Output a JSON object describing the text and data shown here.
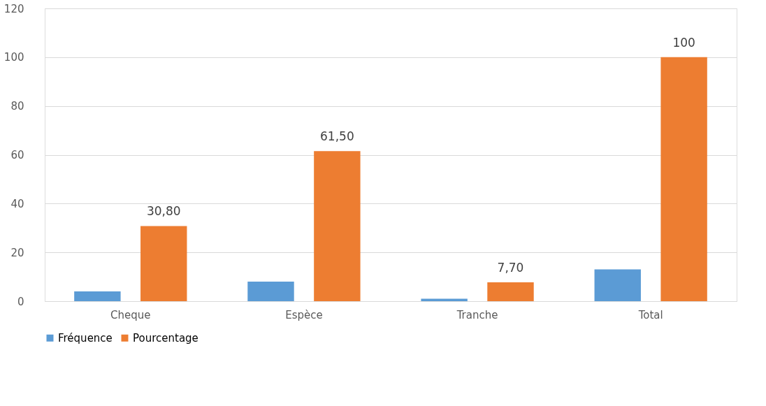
{
  "chart_data": {
    "type": "bar",
    "categories": [
      "Cheque",
      "Espèce",
      "Tranche",
      "Total"
    ],
    "series": [
      {
        "name": "Fréquence",
        "color": "#5b9bd5",
        "values": [
          4,
          8,
          1,
          13
        ]
      },
      {
        "name": "Pourcentage",
        "color": "#ed7d31",
        "values": [
          30.8,
          61.5,
          7.7,
          100
        ],
        "value_labels": [
          "30,80",
          "61,50",
          "7,70",
          "100"
        ]
      }
    ],
    "ylim": [
      0,
      120
    ],
    "yticks": [
      0,
      20,
      40,
      60,
      80,
      100,
      120
    ],
    "grid": "y",
    "legend": "bottom"
  }
}
